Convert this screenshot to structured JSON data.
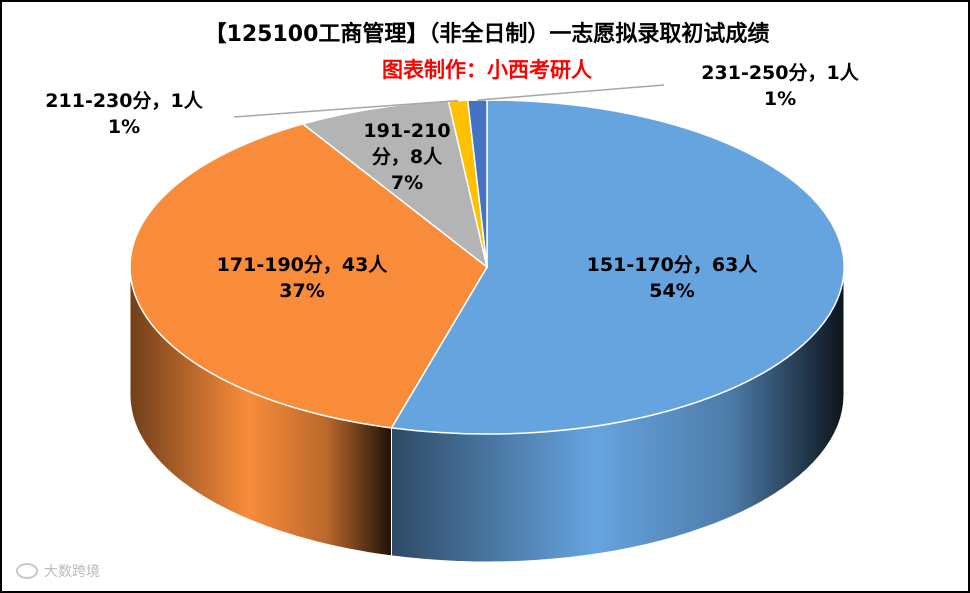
{
  "title": "【125100工商管理】（非全日制）一志愿拟录取初试成绩",
  "subtitle": "图表制作：小西考研人",
  "subtitle_color": "#ff0000",
  "watermark": "大数跨境",
  "chart_data": {
    "type": "pie",
    "style": "3d",
    "title": "【125100工商管理】（非全日制）一志愿拟录取初试成绩",
    "categories": [
      "151-170分",
      "171-190分",
      "191-210分",
      "211-230分",
      "231-250分"
    ],
    "values": [
      63,
      43,
      8,
      1,
      1
    ],
    "percent_labels": [
      "54%",
      "37%",
      "7%",
      "1%",
      "1%"
    ],
    "count_labels": [
      "63人",
      "43人",
      "8人",
      "1人",
      "1人"
    ],
    "colors": [
      "#66a4e0",
      "#f98c3a",
      "#b4b4b4",
      "#ffc000",
      "#4472c4"
    ],
    "labels": [
      {
        "line1": "151-170分，63人",
        "line2": "54%"
      },
      {
        "line1": "171-190分，43人",
        "line2": "37%"
      },
      {
        "line1": "191-210",
        "line2": "分，8人",
        "line3": "7%"
      },
      {
        "line1": "211-230分，1人",
        "line2": "1%"
      },
      {
        "line1": "231-250分，1人",
        "line2": "1%"
      }
    ],
    "legend": "none"
  }
}
